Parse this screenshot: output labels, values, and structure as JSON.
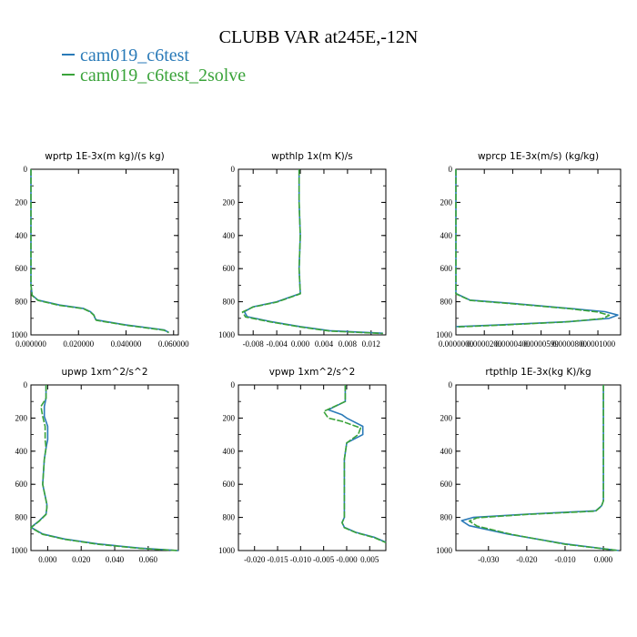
{
  "title": "CLUBB VAR at245E,-12N",
  "legend": [
    {
      "label": "cam019_c6test",
      "color": "#2a7ab8"
    },
    {
      "label": "cam019_c6test_2solve",
      "color": "#3aa33a"
    }
  ],
  "chart_data": [
    {
      "type": "line",
      "title": "wprtp  1E-3x(m kg)/(s kg)",
      "xlim": [
        0.0,
        0.062
      ],
      "ylim": [
        1000,
        0
      ],
      "xticks": [
        0.0,
        0.02,
        0.04,
        0.06
      ],
      "xtick_labels": [
        "0.000000",
        "0.020000",
        "0.040000",
        "0.060000"
      ],
      "yticks": [
        0,
        200,
        400,
        600,
        800,
        1000
      ],
      "ytick_labels": [
        "0",
        "200",
        "400",
        "600",
        "800",
        "1000"
      ],
      "series": [
        {
          "name": "cam019_c6test",
          "x": [
            0.0,
            0.0,
            0.0,
            0.0005,
            0.003,
            0.012,
            0.022,
            0.025,
            0.0265,
            0.027,
            0.0275,
            0.04,
            0.056,
            0.058
          ],
          "y": [
            0,
            300,
            700,
            760,
            790,
            820,
            840,
            860,
            880,
            900,
            910,
            940,
            970,
            985
          ]
        },
        {
          "name": "cam019_c6test_2solve",
          "x": [
            0.0,
            0.0,
            0.0,
            0.0005,
            0.003,
            0.012,
            0.022,
            0.025,
            0.0265,
            0.027,
            0.0275,
            0.04,
            0.056,
            0.058
          ],
          "y": [
            0,
            300,
            700,
            762,
            792,
            822,
            842,
            862,
            882,
            902,
            912,
            942,
            972,
            987
          ]
        }
      ]
    },
    {
      "type": "line",
      "title": "wpthlp  1x(m K)/s",
      "xlim": [
        -0.0105,
        0.0145
      ],
      "ylim": [
        1000,
        0
      ],
      "xticks": [
        -0.008,
        -0.004,
        0.0,
        0.004,
        0.008,
        0.012
      ],
      "xtick_labels": [
        "-0.008",
        "-0.004",
        "0.000",
        "0.004",
        "0.008",
        "0.012"
      ],
      "yticks": [
        0,
        200,
        400,
        600,
        800,
        1000
      ],
      "ytick_labels": [
        "0",
        "200",
        "400",
        "600",
        "800",
        "1000"
      ],
      "series": [
        {
          "name": "cam019_c6test",
          "x": [
            -0.0002,
            -0.0002,
            0.0,
            -0.0002,
            0.0,
            -0.004,
            -0.008,
            -0.0095,
            -0.009,
            -0.005,
            0.0,
            0.005,
            0.014
          ],
          "y": [
            0,
            200,
            400,
            600,
            750,
            800,
            830,
            860,
            890,
            920,
            950,
            975,
            990
          ]
        },
        {
          "name": "cam019_c6test_2solve",
          "x": [
            -0.0002,
            -0.0002,
            0.0,
            -0.0002,
            0.0,
            -0.004,
            -0.008,
            -0.0098,
            -0.0093,
            -0.005,
            0.0,
            0.005,
            0.014
          ],
          "y": [
            0,
            200,
            400,
            600,
            752,
            802,
            832,
            862,
            892,
            922,
            952,
            977,
            992
          ]
        }
      ]
    },
    {
      "type": "line",
      "title": "wprcp  1E-3x(m/s) (kg/kg)",
      "xlim": [
        0.0,
        0.000116
      ],
      "ylim": [
        1000,
        0
      ],
      "xticks": [
        0.0,
        2e-05,
        4e-05,
        6e-05,
        8e-05,
        0.0001
      ],
      "xtick_labels": [
        "0.0000000",
        "0.0000200",
        "0.0000400",
        "0.0000599",
        "0.0000800",
        "0.0001000"
      ],
      "yticks": [
        0,
        200,
        400,
        600,
        800,
        1000
      ],
      "ytick_labels": [
        "0",
        "200",
        "400",
        "600",
        "800",
        "1000"
      ],
      "series": [
        {
          "name": "cam019_c6test",
          "x": [
            0.0,
            0.0,
            0.0,
            0.0,
            1e-05,
            4e-05,
            8e-05,
            0.000105,
            0.000114,
            0.000108,
            8e-05,
            3e-05,
            0.0
          ],
          "y": [
            0,
            400,
            600,
            750,
            790,
            810,
            840,
            860,
            880,
            900,
            920,
            940,
            950
          ]
        },
        {
          "name": "cam019_c6test_2solve",
          "x": [
            0.0,
            0.0,
            0.0,
            0.0,
            1e-05,
            4e-05,
            8e-05,
            0.0001,
            0.000108,
            0.000103,
            7.7e-05,
            3e-05,
            0.0
          ],
          "y": [
            0,
            400,
            600,
            752,
            792,
            812,
            842,
            862,
            882,
            902,
            922,
            942,
            952
          ]
        }
      ]
    },
    {
      "type": "line",
      "title": "upwp  1xm^2/s^2",
      "xlim": [
        -0.01,
        0.078
      ],
      "ylim": [
        1000,
        0
      ],
      "xticks": [
        0.0,
        0.02,
        0.04,
        0.06
      ],
      "xtick_labels": [
        "0.000",
        "0.020",
        "0.040",
        "0.060"
      ],
      "yticks": [
        0,
        200,
        400,
        600,
        800,
        1000
      ],
      "ytick_labels": [
        "0",
        "200",
        "400",
        "600",
        "800",
        "1000"
      ],
      "series": [
        {
          "name": "cam019_c6test",
          "x": [
            -0.001,
            -0.001,
            -0.002,
            -0.002,
            0.0,
            0.0,
            -0.001,
            -0.002,
            -0.003,
            -0.0005,
            -0.0005,
            -0.001,
            -0.005,
            -0.01,
            -0.003,
            0.01,
            0.03,
            0.055,
            0.078
          ],
          "y": [
            0,
            80,
            130,
            190,
            250,
            330,
            380,
            450,
            600,
            720,
            740,
            780,
            820,
            860,
            900,
            930,
            960,
            985,
            1000
          ]
        },
        {
          "name": "cam019_c6test_2solve",
          "x": [
            -0.001,
            -0.001,
            -0.004,
            -0.003,
            -0.0015,
            -0.0015,
            -0.001,
            -0.002,
            -0.003,
            -0.0005,
            -0.0005,
            -0.001,
            -0.005,
            -0.01,
            -0.003,
            0.01,
            0.03,
            0.055,
            0.078
          ],
          "y": [
            0,
            80,
            130,
            190,
            250,
            330,
            380,
            450,
            600,
            722,
            742,
            782,
            822,
            862,
            902,
            932,
            962,
            987,
            1000
          ]
        }
      ]
    },
    {
      "type": "line",
      "title": "vpwp  1xm^2/s^2",
      "xlim": [
        -0.0235,
        0.0085
      ],
      "ylim": [
        1000,
        0
      ],
      "xticks": [
        -0.02,
        -0.015,
        -0.01,
        -0.005,
        0.0,
        0.005
      ],
      "xtick_labels": [
        "-0.020",
        "-0.015",
        "-0.010",
        "-0.005",
        "-0.000",
        "0.005"
      ],
      "yticks": [
        0,
        200,
        400,
        600,
        800,
        1000
      ],
      "ytick_labels": [
        "0",
        "200",
        "400",
        "600",
        "800",
        "1000"
      ],
      "series": [
        {
          "name": "cam019_c6test",
          "x": [
            -0.0003,
            -0.0003,
            -0.004,
            -0.001,
            0.0,
            0.0035,
            0.0035,
            0.0,
            -0.0005,
            -0.0005,
            -0.001,
            -0.0005,
            0.002,
            0.006,
            0.0085
          ],
          "y": [
            0,
            100,
            150,
            180,
            200,
            250,
            300,
            350,
            450,
            800,
            830,
            860,
            890,
            920,
            950
          ]
        },
        {
          "name": "cam019_c6test_2solve",
          "x": [
            -0.0003,
            -0.0003,
            -0.005,
            -0.004,
            -0.001,
            0.003,
            0.0025,
            0.0,
            -0.0005,
            -0.0005,
            -0.001,
            -0.0005,
            0.002,
            0.006,
            0.0085
          ],
          "y": [
            0,
            100,
            160,
            200,
            220,
            260,
            300,
            350,
            450,
            802,
            832,
            862,
            892,
            922,
            952
          ]
        }
      ]
    },
    {
      "type": "line",
      "title": "rtpthlp  1E-3x(kg K)/kg",
      "xlim": [
        -0.0385,
        0.0045
      ],
      "ylim": [
        1000,
        0
      ],
      "xticks": [
        -0.03,
        -0.02,
        -0.01,
        0.0
      ],
      "xtick_labels": [
        "-0.030",
        "-0.020",
        "-0.010",
        "0.000"
      ],
      "yticks": [
        0,
        200,
        400,
        600,
        800,
        1000
      ],
      "ytick_labels": [
        "0",
        "200",
        "400",
        "600",
        "800",
        "1000"
      ],
      "series": [
        {
          "name": "cam019_c6test",
          "x": [
            0.0,
            0.0,
            0.0,
            -0.0005,
            -0.002,
            -0.02,
            -0.034,
            -0.037,
            -0.035,
            -0.025,
            -0.01,
            0.004
          ],
          "y": [
            0,
            400,
            700,
            730,
            760,
            780,
            800,
            820,
            850,
            900,
            960,
            1000
          ]
        },
        {
          "name": "cam019_c6test_2solve",
          "x": [
            0.0,
            0.0,
            0.0,
            -0.0005,
            -0.002,
            -0.02,
            -0.033,
            -0.035,
            -0.033,
            -0.024,
            -0.01,
            0.004
          ],
          "y": [
            0,
            400,
            700,
            732,
            762,
            782,
            802,
            822,
            852,
            902,
            962,
            1000
          ]
        }
      ]
    }
  ]
}
